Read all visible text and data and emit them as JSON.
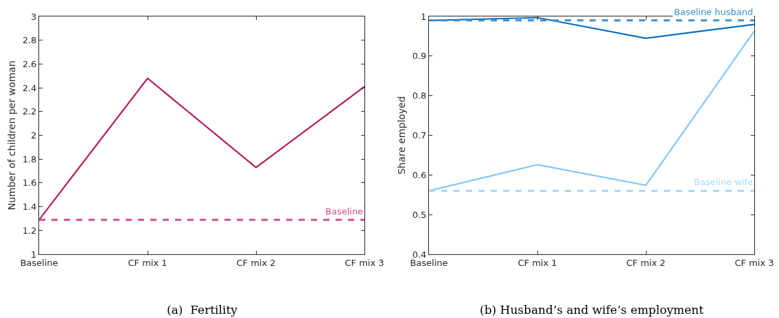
{
  "chart_data": [
    {
      "type": "line",
      "ylabel": "Number of children per woman",
      "categories": [
        "Baseline",
        "CF mix 1",
        "CF mix 2",
        "CF mix 3"
      ],
      "series": [
        {
          "color": "#b5175e",
          "values": [
            1.29,
            2.48,
            1.73,
            2.41
          ]
        }
      ],
      "ylim": [
        1,
        3
      ],
      "yticks": [
        1,
        1.2,
        1.4,
        1.6,
        1.8,
        2,
        2.2,
        2.4,
        2.6,
        2.8,
        3
      ],
      "grid": false,
      "line_style": "solid",
      "marker": "none",
      "ref_lines": [
        {
          "axis": "y",
          "value": 1.29,
          "label": "Baseline",
          "color": "#cc4f8a",
          "line_style": "dashed"
        }
      ],
      "annotations": [
        "(a)  Fertility"
      ]
    },
    {
      "type": "line",
      "ylabel": "Share employed",
      "categories": [
        "Baseline",
        "CF mix 1",
        "CF mix 2",
        "CF mix 3"
      ],
      "series": [
        {
          "color": "#0a6ebd",
          "values": [
            0.99,
            0.997,
            0.945,
            0.98
          ]
        },
        {
          "color": "#7fc8f8",
          "values": [
            0.56,
            0.626,
            0.574,
            0.963
          ]
        }
      ],
      "ylim": [
        0.4,
        1
      ],
      "yticks": [
        0.4,
        0.5,
        0.6,
        0.7,
        0.8,
        0.9,
        1
      ],
      "grid": false,
      "line_style": "solid",
      "marker": "none",
      "ref_lines": [
        {
          "axis": "y",
          "value": 0.99,
          "label": "Baseline husband",
          "color": "#3d8fd1",
          "line_style": "dashed"
        },
        {
          "axis": "y",
          "value": 0.56,
          "label": "Baseline wife",
          "color": "#a6d8fa",
          "line_style": "dashed"
        }
      ],
      "annotations": [
        "(b) Husband’s and wife’s employment"
      ]
    }
  ]
}
